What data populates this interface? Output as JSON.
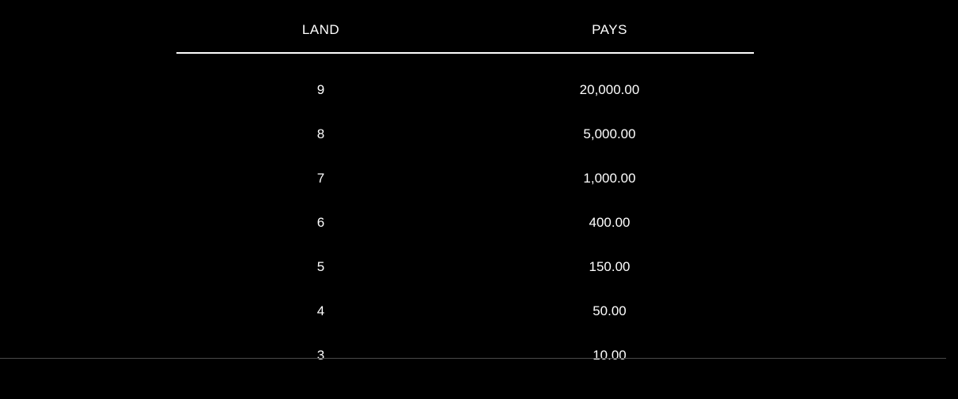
{
  "paytable": {
    "type": "table",
    "background_color": "#000000",
    "text_color": "#ffffff",
    "header_border_color": "#ffffff",
    "header_border_width": 2,
    "font_size": 17,
    "font_family": "Arial",
    "columns": [
      {
        "key": "land",
        "label": "LAND",
        "align": "center"
      },
      {
        "key": "pays",
        "label": "PAYS",
        "align": "center"
      }
    ],
    "rows": [
      {
        "land": "9",
        "pays": "20,000.00"
      },
      {
        "land": "8",
        "pays": "5,000.00"
      },
      {
        "land": "7",
        "pays": "1,000.00"
      },
      {
        "land": "6",
        "pays": "400.00"
      },
      {
        "land": "5",
        "pays": "150.00"
      },
      {
        "land": "4",
        "pays": "50.00"
      },
      {
        "land": "3",
        "pays": "10.00"
      }
    ],
    "divider_color": "#4a4a4a",
    "row_padding": 18
  }
}
